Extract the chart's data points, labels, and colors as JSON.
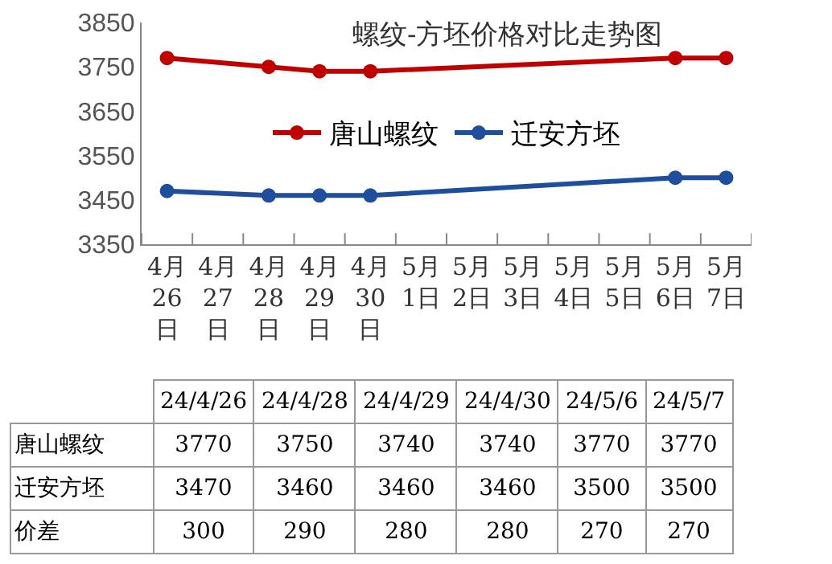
{
  "chart_data": [
    {
      "type": "line",
      "title": "螺纹-方坯价格对比走势图",
      "categories": [
        "4月26日",
        "4月27日",
        "4月28日",
        "4月29日",
        "4月30日",
        "5月1日",
        "5月2日",
        "5月3日",
        "5月4日",
        "5月5日",
        "5月6日",
        "5月7日"
      ],
      "series": [
        {
          "name": "唐山螺纹",
          "color": "#c00000",
          "values": [
            3770,
            null,
            3750,
            3740,
            3740,
            null,
            null,
            null,
            null,
            null,
            3770,
            3770
          ]
        },
        {
          "name": "迁安方坯",
          "color": "#1f4e9c",
          "values": [
            3470,
            null,
            3460,
            3460,
            3460,
            null,
            null,
            null,
            null,
            null,
            3500,
            3500
          ]
        }
      ],
      "ylim": [
        3350,
        3850
      ],
      "yticks": [
        3350,
        3450,
        3550,
        3650,
        3750,
        3850
      ],
      "grid": false,
      "legend": "center",
      "marker": "circle",
      "line_style": "solid"
    },
    {
      "type": "other",
      "categories": [
        "24/4/26",
        "24/4/28",
        "24/4/29",
        "24/4/30",
        "24/5/6",
        "24/5/7"
      ],
      "series": [
        {
          "name": "唐山螺纹",
          "values": [
            3770,
            3750,
            3740,
            3740,
            3770,
            3770
          ]
        },
        {
          "name": "迁安方坯",
          "values": [
            3470,
            3460,
            3460,
            3460,
            3500,
            3500
          ]
        },
        {
          "name": "价差",
          "values": [
            300,
            290,
            280,
            280,
            270,
            270
          ]
        }
      ],
      "data_labels": true
    }
  ]
}
